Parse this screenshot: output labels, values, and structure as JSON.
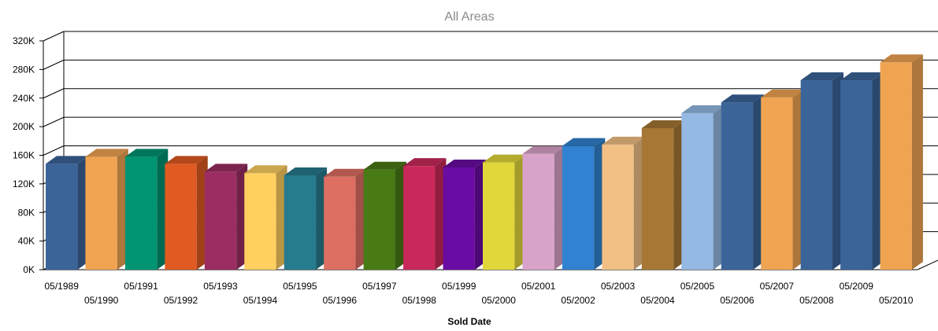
{
  "chart_data": {
    "type": "bar",
    "title": "",
    "subtitle": "All Areas",
    "xlabel": "Sold Date",
    "ylabel": "",
    "ylim": [
      0,
      320000
    ],
    "yticks": [
      "0K",
      "40K",
      "80K",
      "120K",
      "160K",
      "200K",
      "240K",
      "280K",
      "320K"
    ],
    "grid": true,
    "categories": [
      "05/1989",
      "05/1990",
      "05/1991",
      "05/1992",
      "05/1993",
      "05/1994",
      "05/1995",
      "05/1996",
      "05/1997",
      "05/1998",
      "05/1999",
      "05/2000",
      "05/2001",
      "05/2002",
      "05/2003",
      "05/2004",
      "05/2005",
      "05/2006",
      "05/2007",
      "05/2008",
      "05/2009",
      "05/2010"
    ],
    "values": [
      148000,
      158000,
      158000,
      148000,
      137000,
      135000,
      132000,
      130000,
      140000,
      145000,
      143000,
      150000,
      162000,
      173000,
      175000,
      198000,
      219000,
      234000,
      241000,
      265000,
      265000,
      290000
    ],
    "colors": [
      "#3b6499",
      "#f0a452",
      "#009572",
      "#e05a22",
      "#9b2d62",
      "#ffcf60",
      "#277b8e",
      "#dd6e62",
      "#487a16",
      "#c9295a",
      "#6a0ca3",
      "#e2d73a",
      "#d9a3c9",
      "#3182d0",
      "#f2c085",
      "#a67735",
      "#94b9e3",
      "#3b6499",
      "#f0a452",
      "#3b6499",
      "#3b6499",
      "#f0a452"
    ]
  }
}
